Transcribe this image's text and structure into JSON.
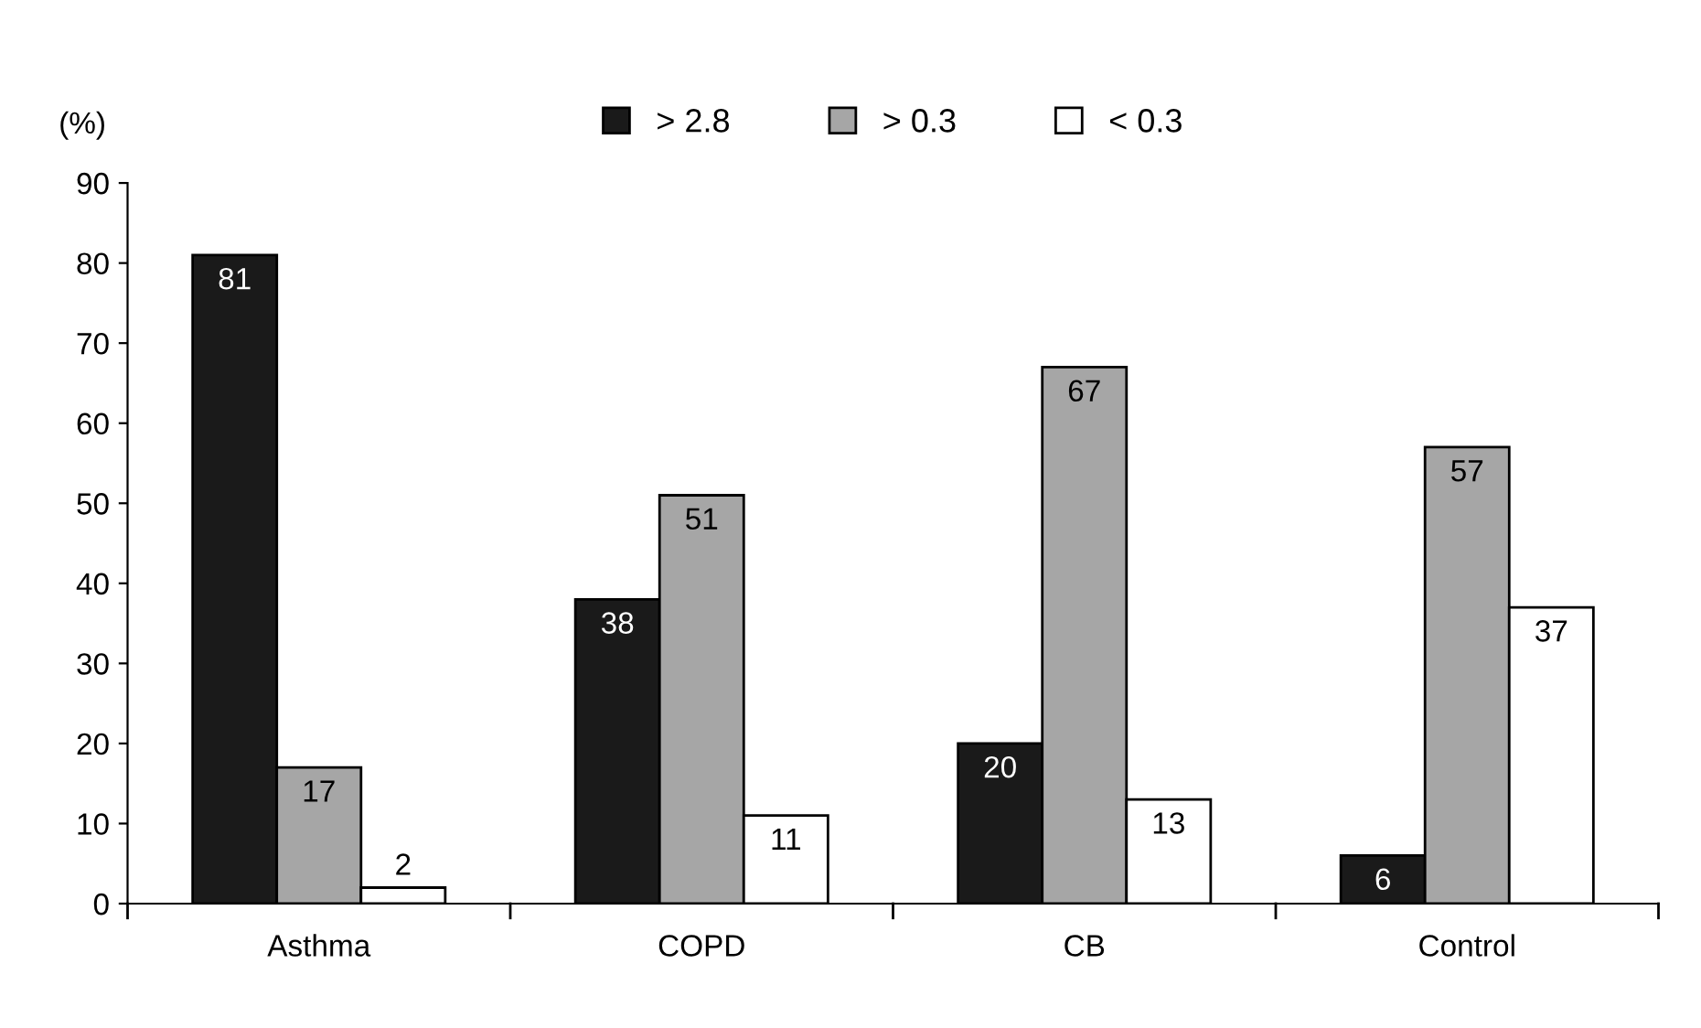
{
  "chart_data": {
    "type": "bar",
    "ylabel": "(%)",
    "categories": [
      "Asthma",
      "COPD",
      "CB",
      "Control"
    ],
    "series": [
      {
        "name": "> 2.8",
        "color": "#1a1a1a",
        "values": [
          81,
          38,
          20,
          6
        ]
      },
      {
        "name": "> 0.3",
        "color": "#a6a6a6",
        "values": [
          17,
          51,
          67,
          57
        ]
      },
      {
        "name": "< 0.3",
        "color": "#ffffff",
        "values": [
          2,
          11,
          13,
          37
        ]
      }
    ],
    "ylim": [
      0,
      90
    ],
    "yticks": [
      0,
      10,
      20,
      30,
      40,
      50,
      60,
      70,
      80,
      90
    ],
    "grid": false,
    "legend": "top",
    "data_labels": true
  }
}
